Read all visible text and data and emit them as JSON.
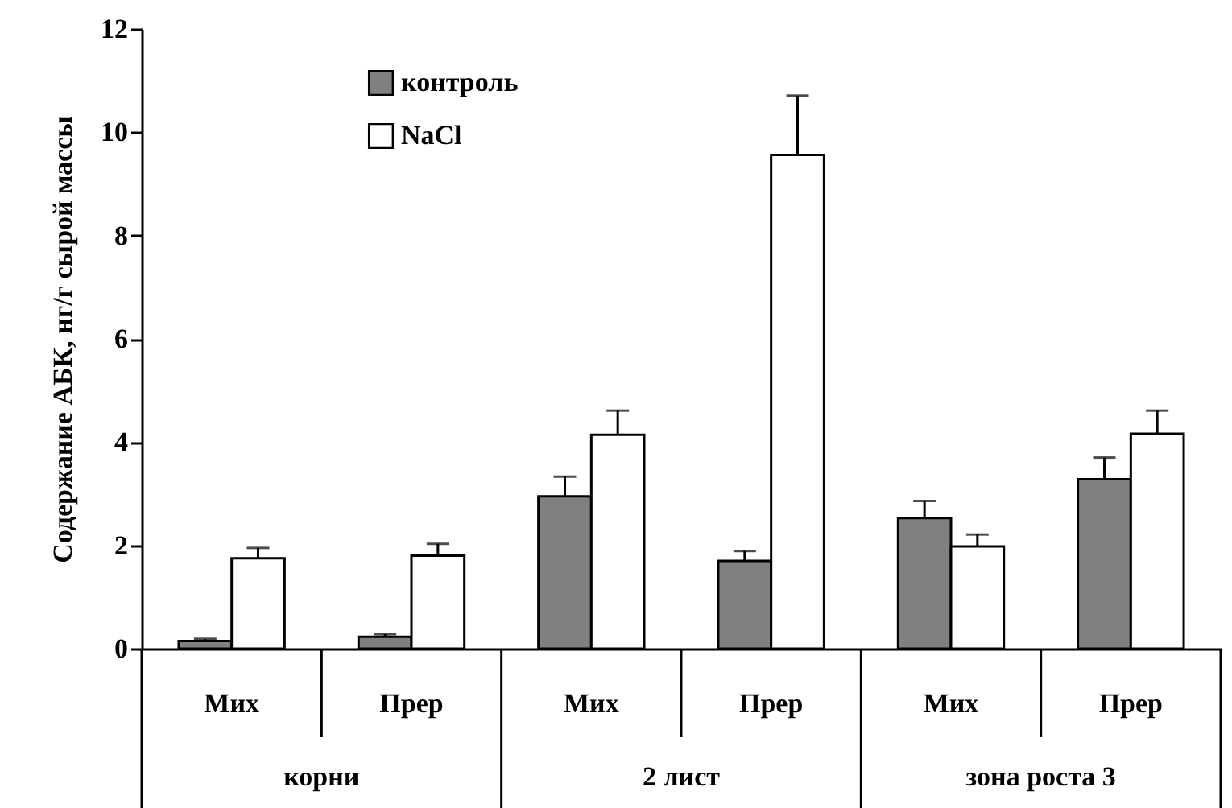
{
  "chart_data": {
    "type": "bar",
    "ylabel": "Содержание АБК, нг/г сырой массы",
    "categories": [
      "Мих",
      "Прер",
      "Мих",
      "Прер",
      "Мих",
      "Прер"
    ],
    "series": [
      {
        "name": "контроль",
        "color": "#808080",
        "values": [
          0.15,
          0.23,
          2.95,
          1.7,
          2.53,
          3.28
        ],
        "errors": [
          0.04,
          0.05,
          0.38,
          0.19,
          0.33,
          0.42
        ]
      },
      {
        "name": "NaCl",
        "color": "#ffffff",
        "values": [
          1.75,
          1.8,
          4.14,
          9.56,
          1.98,
          4.16
        ],
        "errors": [
          0.2,
          0.23,
          0.47,
          1.15,
          0.23,
          0.45
        ]
      }
    ],
    "annotations": [
      "корни",
      "2 лист",
      "зона роста 3"
    ],
    "ylim": [
      0,
      12
    ],
    "yticks": [
      0,
      2,
      4,
      6,
      8,
      10,
      12
    ],
    "grid": false,
    "legend": "top left"
  }
}
